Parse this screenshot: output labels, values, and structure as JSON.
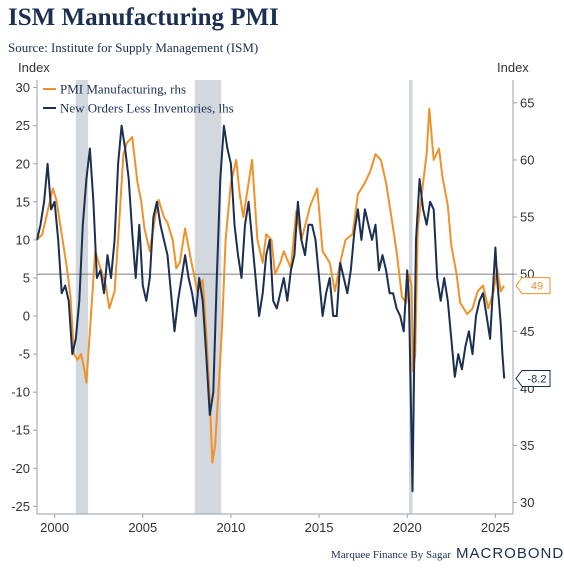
{
  "header": {
    "title": "ISM Manufacturing PMI",
    "subtitle": "Source: Institute for Supply Management (ISM)"
  },
  "footer": {
    "source": "Marquee Finance By Sagar",
    "brand": "MACROBOND"
  },
  "colors": {
    "pmi": "#f0922a",
    "orders": "#1b2f52",
    "recession": "#d3d7de",
    "reference_line": "#555555"
  },
  "chart_data": {
    "type": "line",
    "title": "ISM Manufacturing PMI",
    "subtitle": "Source: Institute for Supply Management (ISM)",
    "x_range": [
      1999.0,
      2026.0
    ],
    "x_ticks": [
      2000,
      2005,
      2010,
      2015,
      2020,
      2025
    ],
    "left_axis": {
      "label": "Index",
      "range": [
        -26,
        31
      ],
      "ticks": [
        -25,
        -20,
        -15,
        -10,
        -5,
        0,
        5,
        10,
        15,
        20,
        25,
        30
      ]
    },
    "right_axis": {
      "label": "Index",
      "range": [
        29,
        67
      ],
      "ticks": [
        30,
        35,
        40,
        45,
        50,
        55,
        60,
        65
      ]
    },
    "reference_line": {
      "axis": "right",
      "value": 50
    },
    "recessions": [
      [
        2001.2,
        2001.9
      ],
      [
        2007.95,
        2009.45
      ],
      [
        2020.1,
        2020.3
      ]
    ],
    "legend": {
      "placement": "top-left"
    },
    "series": [
      {
        "name": "PMI Manufacturing, rhs",
        "axis": "right",
        "end_label": "49",
        "points": [
          [
            1999.0,
            53
          ],
          [
            1999.3,
            53.5
          ],
          [
            1999.6,
            55.5
          ],
          [
            1999.9,
            57.5
          ],
          [
            2000.1,
            56.5
          ],
          [
            2000.4,
            53.5
          ],
          [
            2000.7,
            50.5
          ],
          [
            2000.9,
            48
          ],
          [
            2001.1,
            43
          ],
          [
            2001.3,
            42.5
          ],
          [
            2001.5,
            43
          ],
          [
            2001.7,
            41.5
          ],
          [
            2001.8,
            40.5
          ],
          [
            2002.0,
            45
          ],
          [
            2002.3,
            52
          ],
          [
            2002.6,
            50.5
          ],
          [
            2002.9,
            49
          ],
          [
            2003.1,
            47
          ],
          [
            2003.4,
            48.5
          ],
          [
            2003.6,
            53
          ],
          [
            2003.9,
            60.5
          ],
          [
            2004.1,
            61.5
          ],
          [
            2004.4,
            62
          ],
          [
            2004.7,
            58
          ],
          [
            2004.9,
            56.5
          ],
          [
            2005.1,
            54
          ],
          [
            2005.4,
            52
          ],
          [
            2005.7,
            55
          ],
          [
            2005.9,
            56.5
          ],
          [
            2006.2,
            55
          ],
          [
            2006.4,
            54.5
          ],
          [
            2006.7,
            53
          ],
          [
            2006.9,
            50.5
          ],
          [
            2007.1,
            51
          ],
          [
            2007.4,
            54
          ],
          [
            2007.7,
            51.5
          ],
          [
            2007.9,
            50
          ],
          [
            2008.1,
            48.5
          ],
          [
            2008.4,
            49.5
          ],
          [
            2008.6,
            45
          ],
          [
            2008.8,
            39
          ],
          [
            2008.95,
            33.5
          ],
          [
            2009.1,
            35
          ],
          [
            2009.3,
            40
          ],
          [
            2009.5,
            45.5
          ],
          [
            2009.7,
            53
          ],
          [
            2010.0,
            58
          ],
          [
            2010.3,
            60
          ],
          [
            2010.5,
            57
          ],
          [
            2010.7,
            55
          ],
          [
            2011.0,
            58
          ],
          [
            2011.2,
            60
          ],
          [
            2011.5,
            53
          ],
          [
            2011.8,
            51
          ],
          [
            2012.0,
            53.5
          ],
          [
            2012.3,
            53
          ],
          [
            2012.5,
            50
          ],
          [
            2012.8,
            51
          ],
          [
            2013.0,
            52
          ],
          [
            2013.4,
            50.5
          ],
          [
            2013.7,
            55.5
          ],
          [
            2014.0,
            53
          ],
          [
            2014.5,
            56
          ],
          [
            2014.9,
            57.5
          ],
          [
            2015.2,
            52
          ],
          [
            2015.6,
            51
          ],
          [
            2015.9,
            48.5
          ],
          [
            2016.2,
            51
          ],
          [
            2016.5,
            53
          ],
          [
            2016.9,
            53.5
          ],
          [
            2017.2,
            57
          ],
          [
            2017.6,
            58
          ],
          [
            2017.9,
            59
          ],
          [
            2018.2,
            60.5
          ],
          [
            2018.5,
            60
          ],
          [
            2018.8,
            58
          ],
          [
            2019.1,
            55
          ],
          [
            2019.4,
            52
          ],
          [
            2019.7,
            48
          ],
          [
            2019.95,
            47.5
          ],
          [
            2020.1,
            50
          ],
          [
            2020.25,
            49
          ],
          [
            2020.33,
            41.5
          ],
          [
            2020.45,
            43
          ],
          [
            2020.6,
            54
          ],
          [
            2020.9,
            58
          ],
          [
            2021.1,
            60.5
          ],
          [
            2021.25,
            64.5
          ],
          [
            2021.5,
            60
          ],
          [
            2021.8,
            61
          ],
          [
            2022.0,
            58.5
          ],
          [
            2022.3,
            56
          ],
          [
            2022.5,
            52.5
          ],
          [
            2022.8,
            50
          ],
          [
            2023.0,
            47.5
          ],
          [
            2023.4,
            46.5
          ],
          [
            2023.7,
            47
          ],
          [
            2024.0,
            48.5
          ],
          [
            2024.3,
            49
          ],
          [
            2024.6,
            47
          ],
          [
            2024.9,
            48.5
          ],
          [
            2025.1,
            50.5
          ],
          [
            2025.3,
            48.5
          ],
          [
            2025.5,
            49
          ]
        ]
      },
      {
        "name": "New Orders Less Inventories, lhs",
        "axis": "left",
        "end_label": "-8.2",
        "points": [
          [
            1999.0,
            10
          ],
          [
            1999.2,
            12
          ],
          [
            1999.4,
            15
          ],
          [
            1999.6,
            20
          ],
          [
            1999.8,
            14
          ],
          [
            2000.0,
            15
          ],
          [
            2000.2,
            10
          ],
          [
            2000.4,
            3
          ],
          [
            2000.6,
            4
          ],
          [
            2000.8,
            2
          ],
          [
            2001.0,
            -5
          ],
          [
            2001.2,
            -3
          ],
          [
            2001.4,
            2
          ],
          [
            2001.6,
            12
          ],
          [
            2001.8,
            18
          ],
          [
            2002.0,
            22
          ],
          [
            2002.2,
            15
          ],
          [
            2002.4,
            5
          ],
          [
            2002.6,
            6
          ],
          [
            2002.8,
            3
          ],
          [
            2003.0,
            8
          ],
          [
            2003.2,
            5
          ],
          [
            2003.4,
            10
          ],
          [
            2003.6,
            20
          ],
          [
            2003.8,
            25
          ],
          [
            2004.0,
            22
          ],
          [
            2004.2,
            18
          ],
          [
            2004.4,
            11
          ],
          [
            2004.6,
            5
          ],
          [
            2004.8,
            12
          ],
          [
            2005.0,
            4
          ],
          [
            2005.2,
            2
          ],
          [
            2005.4,
            5
          ],
          [
            2005.6,
            13
          ],
          [
            2005.8,
            15
          ],
          [
            2006.0,
            12
          ],
          [
            2006.2,
            10
          ],
          [
            2006.4,
            8
          ],
          [
            2006.6,
            3
          ],
          [
            2006.8,
            -2
          ],
          [
            2007.0,
            2
          ],
          [
            2007.2,
            5
          ],
          [
            2007.4,
            8
          ],
          [
            2007.6,
            5
          ],
          [
            2007.8,
            3
          ],
          [
            2008.0,
            0
          ],
          [
            2008.2,
            5
          ],
          [
            2008.4,
            2
          ],
          [
            2008.6,
            -5
          ],
          [
            2008.8,
            -13
          ],
          [
            2009.0,
            -10
          ],
          [
            2009.2,
            5
          ],
          [
            2009.4,
            18
          ],
          [
            2009.6,
            25
          ],
          [
            2009.8,
            22
          ],
          [
            2010.0,
            20
          ],
          [
            2010.2,
            12
          ],
          [
            2010.4,
            8
          ],
          [
            2010.6,
            5
          ],
          [
            2010.8,
            12
          ],
          [
            2011.0,
            15
          ],
          [
            2011.2,
            10
          ],
          [
            2011.4,
            5
          ],
          [
            2011.6,
            0
          ],
          [
            2011.8,
            3
          ],
          [
            2012.0,
            8
          ],
          [
            2012.2,
            10
          ],
          [
            2012.4,
            2
          ],
          [
            2012.6,
            1
          ],
          [
            2012.8,
            3
          ],
          [
            2013.0,
            5
          ],
          [
            2013.2,
            2
          ],
          [
            2013.4,
            6
          ],
          [
            2013.6,
            8
          ],
          [
            2013.8,
            15
          ],
          [
            2014.0,
            10
          ],
          [
            2014.2,
            8
          ],
          [
            2014.4,
            12
          ],
          [
            2014.6,
            12
          ],
          [
            2014.8,
            10
          ],
          [
            2015.0,
            5
          ],
          [
            2015.2,
            0
          ],
          [
            2015.4,
            3
          ],
          [
            2015.6,
            5
          ],
          [
            2015.8,
            0
          ],
          [
            2016.0,
            0
          ],
          [
            2016.2,
            7
          ],
          [
            2016.4,
            5
          ],
          [
            2016.6,
            3
          ],
          [
            2016.8,
            6
          ],
          [
            2017.0,
            11
          ],
          [
            2017.2,
            14
          ],
          [
            2017.4,
            10
          ],
          [
            2017.6,
            14
          ],
          [
            2017.8,
            12
          ],
          [
            2018.0,
            10
          ],
          [
            2018.2,
            12
          ],
          [
            2018.4,
            6
          ],
          [
            2018.6,
            8
          ],
          [
            2018.8,
            6
          ],
          [
            2019.0,
            3
          ],
          [
            2019.2,
            3
          ],
          [
            2019.4,
            1
          ],
          [
            2019.6,
            0
          ],
          [
            2019.8,
            -2
          ],
          [
            2020.0,
            6
          ],
          [
            2020.1,
            2
          ],
          [
            2020.2,
            -10
          ],
          [
            2020.3,
            -23
          ],
          [
            2020.4,
            -5
          ],
          [
            2020.5,
            10
          ],
          [
            2020.7,
            18
          ],
          [
            2020.9,
            14
          ],
          [
            2021.1,
            12
          ],
          [
            2021.3,
            15
          ],
          [
            2021.5,
            14
          ],
          [
            2021.7,
            5
          ],
          [
            2021.9,
            2
          ],
          [
            2022.1,
            5
          ],
          [
            2022.3,
            2
          ],
          [
            2022.5,
            -3
          ],
          [
            2022.7,
            -8
          ],
          [
            2022.9,
            -5
          ],
          [
            2023.1,
            -7
          ],
          [
            2023.3,
            -4
          ],
          [
            2023.5,
            -2
          ],
          [
            2023.7,
            -5
          ],
          [
            2023.9,
            0
          ],
          [
            2024.1,
            2
          ],
          [
            2024.3,
            3
          ],
          [
            2024.5,
            0
          ],
          [
            2024.7,
            -3
          ],
          [
            2024.9,
            5
          ],
          [
            2025.0,
            9
          ],
          [
            2025.1,
            5
          ],
          [
            2025.2,
            2
          ],
          [
            2025.3,
            -1
          ],
          [
            2025.4,
            -5
          ],
          [
            2025.5,
            -8.2
          ]
        ]
      }
    ]
  }
}
